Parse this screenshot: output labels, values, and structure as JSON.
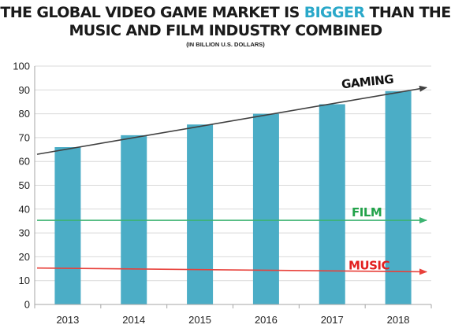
{
  "title": {
    "prefix": "THE GLOBAL VIDEO GAME MARKET IS ",
    "highlight": "BIGGER",
    "suffix": " THAN THE",
    "line2": "MUSIC AND FILM INDUSTRY COMBINED",
    "subtitle": "(IN BILLION U.S. DOLLARS)"
  },
  "colors": {
    "bar": "#4badc6",
    "grid": "#d9d9d9",
    "highlight": "#2aa8c9",
    "gaming": "#404040",
    "film": "#3cb371",
    "music": "#e8403a",
    "film_label": "#22a34a",
    "music_label": "#e21f1f"
  },
  "chart_data": {
    "type": "bar",
    "categories": [
      "2013",
      "2014",
      "2015",
      "2016",
      "2017",
      "2018"
    ],
    "values": [
      66,
      71,
      75.5,
      80,
      84,
      89.5
    ],
    "ylim": [
      0,
      100
    ],
    "yticks": [
      "0",
      "10",
      "20",
      "30",
      "40",
      "50",
      "60",
      "70",
      "80",
      "90",
      "100"
    ],
    "grid": true,
    "trendlines": [
      {
        "label": "GAMING",
        "start": 63,
        "end": 91
      },
      {
        "label": "FILM",
        "start": 35.3,
        "end": 35.3
      },
      {
        "label": "MUSIC",
        "start": 15.3,
        "end": 13.7
      }
    ]
  }
}
